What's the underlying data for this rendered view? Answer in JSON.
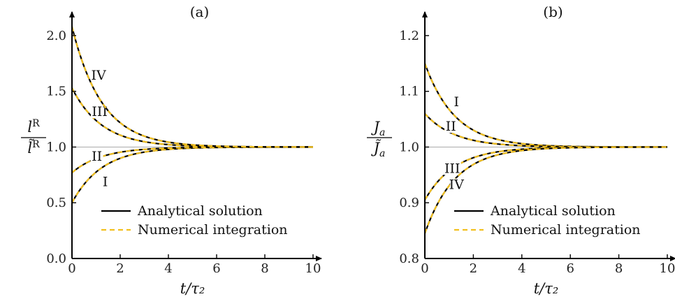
{
  "chart_data": [
    {
      "type": "line",
      "title": "(a)",
      "xlabel": "t/τ₂",
      "ylabel": {
        "num": "l",
        "num_sup": "R",
        "den": "l̃",
        "den_sup": "R"
      },
      "xlim": [
        0,
        10
      ],
      "ylim": [
        0,
        2.1
      ],
      "xticks": [
        "0",
        "2",
        "4",
        "6",
        "8",
        "10"
      ],
      "yticks": [
        "0.0",
        "0.5",
        "1.0",
        "1.5",
        "2.0"
      ],
      "reference_line": 1.0,
      "decay_rate": 0.8,
      "series": [
        {
          "label": "I",
          "start": 0.5
        },
        {
          "label": "II",
          "start": 0.77
        },
        {
          "label": "III",
          "start": 1.53
        },
        {
          "label": "IV",
          "start": 2.08
        }
      ],
      "legend": {
        "position": "bottom-right",
        "entries": [
          "Analytical solution",
          "Numerical integration"
        ]
      }
    },
    {
      "type": "line",
      "title": "(b)",
      "xlabel": "t/τ₂",
      "ylabel": {
        "num": "J",
        "num_sub": "a",
        "den": "J̃",
        "den_sub": "a"
      },
      "xlim": [
        0,
        10
      ],
      "ylim": [
        0.8,
        1.22
      ],
      "xticks": [
        "0",
        "2",
        "4",
        "6",
        "8",
        "10"
      ],
      "yticks": [
        "0.8",
        "0.9",
        "1.0",
        "1.1",
        "1.2"
      ],
      "reference_line": 1.0,
      "decay_rate": 0.8,
      "series": [
        {
          "label": "I",
          "start": 1.15
        },
        {
          "label": "II",
          "start": 1.06
        },
        {
          "label": "III",
          "start": 0.905
        },
        {
          "label": "IV",
          "start": 0.845
        }
      ],
      "legend": {
        "position": "bottom-right",
        "entries": [
          "Analytical solution",
          "Numerical integration"
        ]
      }
    }
  ],
  "colors": {
    "analytical": "#000000",
    "numerical": "#f2c01f",
    "reference": "#aaaaaa",
    "axis": "#000000"
  }
}
